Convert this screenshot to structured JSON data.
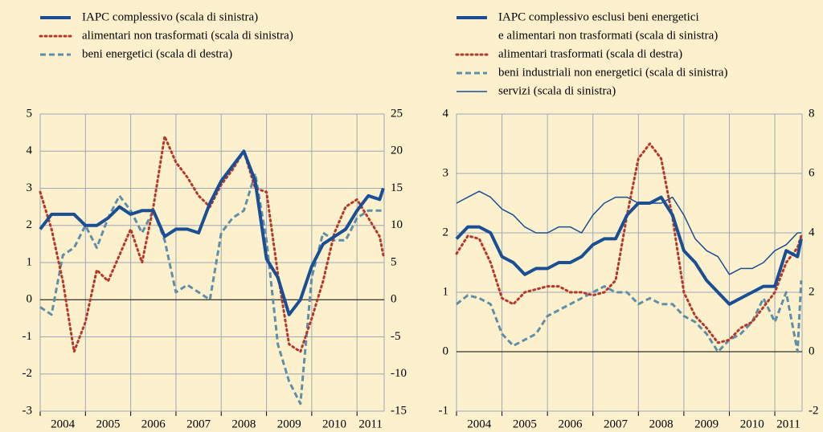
{
  "chart_data": [
    {
      "type": "line",
      "x": [
        2004,
        2004.25,
        2004.5,
        2004.75,
        2005,
        2005.25,
        2005.5,
        2005.75,
        2006,
        2006.25,
        2006.5,
        2006.75,
        2007,
        2007.25,
        2007.5,
        2007.75,
        2008,
        2008.25,
        2008.5,
        2008.75,
        2009,
        2009.25,
        2009.5,
        2009.75,
        2010,
        2010.25,
        2010.5,
        2010.75,
        2011,
        2011.25,
        2011.5,
        2011.58
      ],
      "xlim": [
        2004,
        2011.6
      ],
      "xticks": [
        2004,
        2005,
        2006,
        2007,
        2008,
        2009,
        2010,
        2011
      ],
      "ylim": [
        -3,
        5
      ],
      "yticks": [
        -3,
        -2,
        -1,
        0,
        1,
        2,
        3,
        4,
        5
      ],
      "y2lim": [
        -15,
        25
      ],
      "y2ticks": [
        -15,
        -10,
        -5,
        0,
        5,
        10,
        15,
        20,
        25
      ],
      "grid": true,
      "zero_line": true,
      "series": [
        {
          "name": "IAPC complessivo (scala di sinistra)",
          "color": "#1a4f96",
          "style": "solid",
          "weight": "thick",
          "values": [
            1.9,
            2.3,
            2.3,
            2.3,
            2.0,
            2.0,
            2.2,
            2.5,
            2.3,
            2.4,
            2.4,
            1.7,
            1.9,
            1.9,
            1.8,
            2.6,
            3.2,
            3.6,
            4.0,
            3.2,
            1.1,
            0.6,
            -0.4,
            0.0,
            0.9,
            1.5,
            1.7,
            1.9,
            2.4,
            2.8,
            2.7,
            3.0
          ]
        },
        {
          "name": "alimentari non trasformati (scala di sinistra)",
          "color": "#b5382c",
          "style": "dotted",
          "weight": "medium",
          "values": [
            2.9,
            1.9,
            0.5,
            -1.4,
            -0.6,
            0.8,
            0.5,
            1.2,
            1.9,
            1.0,
            2.5,
            4.4,
            3.7,
            3.3,
            2.8,
            2.5,
            3.1,
            3.5,
            4.0,
            3.0,
            2.9,
            0.7,
            -1.2,
            -1.4,
            -0.5,
            0.5,
            1.8,
            2.5,
            2.7,
            2.2,
            1.7,
            1.2
          ]
        },
        {
          "name": "beni energetici (scala di destra)",
          "color": "#5f8fa8",
          "style": "dashed",
          "weight": "medium",
          "axis": "y2",
          "values": [
            -1,
            -2,
            6,
            7,
            10,
            7,
            11,
            14,
            12,
            9,
            12,
            8,
            1,
            2,
            1,
            0,
            9,
            11,
            12,
            17,
            8,
            -6,
            -11,
            -14,
            3,
            9,
            8,
            8,
            11,
            12,
            12,
            12
          ]
        }
      ]
    },
    {
      "type": "line",
      "x": [
        2004,
        2004.25,
        2004.5,
        2004.75,
        2005,
        2005.25,
        2005.5,
        2005.75,
        2006,
        2006.25,
        2006.5,
        2006.75,
        2007,
        2007.25,
        2007.5,
        2007.75,
        2008,
        2008.25,
        2008.5,
        2008.75,
        2009,
        2009.25,
        2009.5,
        2009.75,
        2010,
        2010.25,
        2010.5,
        2010.75,
        2011,
        2011.25,
        2011.5,
        2011.58
      ],
      "xlim": [
        2004,
        2011.6
      ],
      "xticks": [
        2004,
        2005,
        2006,
        2007,
        2008,
        2009,
        2010,
        2011
      ],
      "ylim": [
        -1,
        4
      ],
      "yticks": [
        -1,
        0,
        1,
        2,
        3,
        4
      ],
      "y2lim": [
        -2,
        8
      ],
      "y2ticks": [
        -2,
        0,
        2,
        4,
        6,
        8
      ],
      "grid": true,
      "zero_line": true,
      "series": [
        {
          "name": [
            "IAPC complessivo esclusi beni energetici",
            "e alimentari non trasformati (scala di sinistra)"
          ],
          "color": "#1a4f96",
          "style": "solid",
          "weight": "thick",
          "values": [
            1.9,
            2.1,
            2.1,
            2.0,
            1.6,
            1.5,
            1.3,
            1.4,
            1.4,
            1.5,
            1.5,
            1.6,
            1.8,
            1.9,
            1.9,
            2.3,
            2.5,
            2.5,
            2.6,
            2.3,
            1.7,
            1.5,
            1.2,
            1.0,
            0.8,
            0.9,
            1.0,
            1.1,
            1.1,
            1.7,
            1.6,
            1.9
          ]
        },
        {
          "name": "alimentari trasformati (scala di destra)",
          "color": "#b5382c",
          "style": "dotted",
          "weight": "medium",
          "axis": "y2",
          "values": [
            3.3,
            3.9,
            3.8,
            3.0,
            1.8,
            1.6,
            2.0,
            2.1,
            2.2,
            2.2,
            2.0,
            2.0,
            1.9,
            2.0,
            2.4,
            4.6,
            6.5,
            7.0,
            6.5,
            4.5,
            2.0,
            1.2,
            0.8,
            0.3,
            0.4,
            0.8,
            1.0,
            1.5,
            2.0,
            3.0,
            3.5,
            3.9
          ]
        },
        {
          "name": "beni industriali non energetici (scala di sinistra)",
          "color": "#5f8fa8",
          "style": "dashed",
          "weight": "medium",
          "values": [
            0.8,
            0.95,
            0.9,
            0.8,
            0.3,
            0.1,
            0.2,
            0.3,
            0.6,
            0.7,
            0.8,
            0.9,
            1.0,
            1.1,
            1.0,
            1.0,
            0.8,
            0.9,
            0.8,
            0.8,
            0.6,
            0.5,
            0.3,
            0.0,
            0.2,
            0.3,
            0.5,
            0.9,
            0.5,
            1.0,
            0.0,
            1.2
          ]
        },
        {
          "name": "servizi (scala di sinistra)",
          "color": "#1a4f96",
          "style": "solid",
          "weight": "thin",
          "values": [
            2.5,
            2.6,
            2.7,
            2.6,
            2.4,
            2.3,
            2.1,
            2.0,
            2.0,
            2.1,
            2.1,
            2.0,
            2.3,
            2.5,
            2.6,
            2.6,
            2.5,
            2.5,
            2.5,
            2.6,
            2.3,
            1.9,
            1.7,
            1.6,
            1.3,
            1.4,
            1.4,
            1.5,
            1.7,
            1.8,
            2.0,
            2.0
          ]
        }
      ]
    }
  ]
}
